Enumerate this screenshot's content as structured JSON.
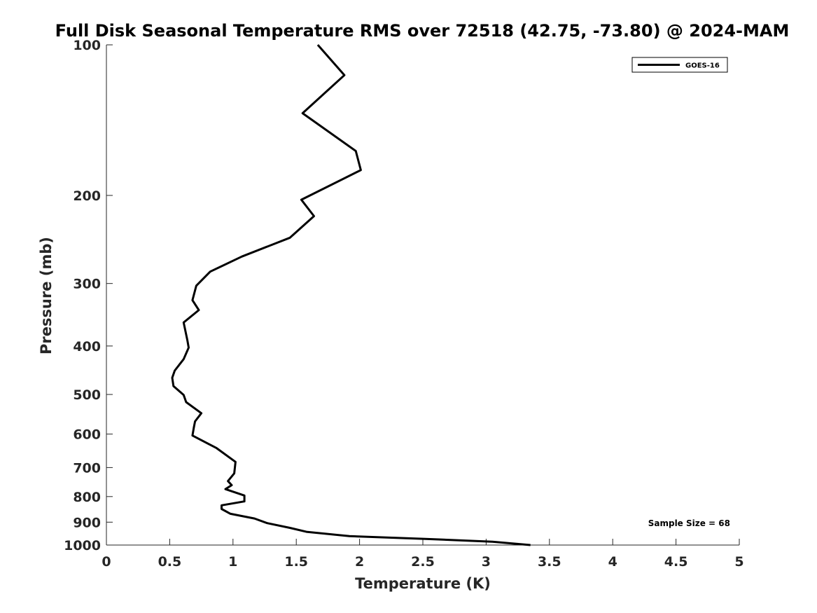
{
  "chart_data": {
    "type": "line",
    "title": "Full Disk Seasonal Temperature RMS over 72518 (42.75, -73.80) @ 2024-MAM",
    "xlabel": "Temperature (K)",
    "ylabel": "Pressure (mb)",
    "xlim": [
      0,
      5
    ],
    "ylim": [
      1000,
      100
    ],
    "yscale": "log",
    "xticks": [
      0,
      0.5,
      1,
      1.5,
      2,
      2.5,
      3,
      3.5,
      4,
      4.5,
      5
    ],
    "xtick_labels": [
      "0",
      "0.5",
      "1",
      "1.5",
      "2",
      "2.5",
      "3",
      "3.5",
      "4",
      "4.5",
      "5"
    ],
    "yticks": [
      100,
      200,
      300,
      400,
      500,
      600,
      700,
      800,
      900,
      1000
    ],
    "ytick_labels": [
      "100",
      "200",
      "300",
      "400",
      "500",
      "600",
      "700",
      "800",
      "900",
      "1000"
    ],
    "grid": false,
    "legend_position": "top-right",
    "annotation": "Sample Size = 68",
    "series": [
      {
        "name": "GOES-16",
        "color": "#000000",
        "points": [
          [
            1.67,
            100
          ],
          [
            1.88,
            115
          ],
          [
            1.55,
            137
          ],
          [
            1.97,
            163
          ],
          [
            2.01,
            178
          ],
          [
            1.54,
            204
          ],
          [
            1.64,
            220
          ],
          [
            1.45,
            243
          ],
          [
            1.07,
            265
          ],
          [
            0.82,
            284
          ],
          [
            0.71,
            303
          ],
          [
            0.68,
            324
          ],
          [
            0.73,
            339
          ],
          [
            0.61,
            359
          ],
          [
            0.64,
            390
          ],
          [
            0.65,
            403
          ],
          [
            0.61,
            425
          ],
          [
            0.54,
            448
          ],
          [
            0.52,
            463
          ],
          [
            0.53,
            481
          ],
          [
            0.61,
            501
          ],
          [
            0.63,
            518
          ],
          [
            0.75,
            545
          ],
          [
            0.7,
            566
          ],
          [
            0.69,
            583
          ],
          [
            0.68,
            604
          ],
          [
            0.87,
            640
          ],
          [
            1.02,
            682
          ],
          [
            1.01,
            719
          ],
          [
            0.96,
            745
          ],
          [
            0.99,
            759
          ],
          [
            0.94,
            773
          ],
          [
            1.09,
            796
          ],
          [
            1.09,
            818
          ],
          [
            0.91,
            833
          ],
          [
            0.91,
            847
          ],
          [
            0.98,
            866
          ],
          [
            1.17,
            885
          ],
          [
            1.27,
            904
          ],
          [
            1.45,
            924
          ],
          [
            1.58,
            941
          ],
          [
            1.92,
            960
          ],
          [
            2.52,
            972
          ],
          [
            3.05,
            985
          ],
          [
            3.35,
            1000
          ]
        ]
      }
    ]
  },
  "legend": {
    "items": [
      {
        "label": "GOES-16",
        "color": "#000000"
      }
    ]
  }
}
